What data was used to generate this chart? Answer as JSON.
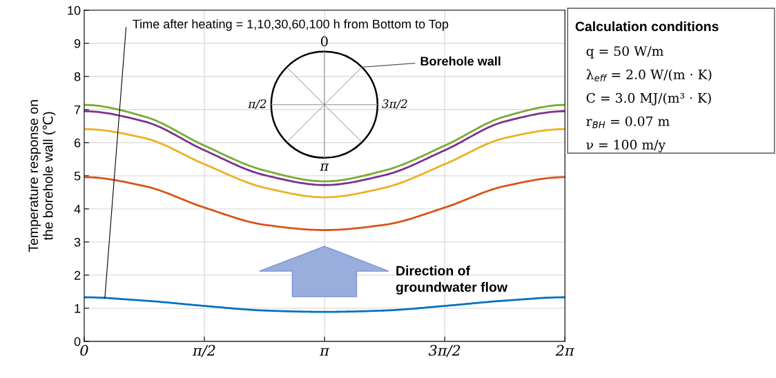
{
  "chart_data": {
    "type": "line",
    "ylabel": "Temperature response on\nthe borehole wall (℃)",
    "x": [
      0,
      0.7854,
      1.5708,
      2.3562,
      3.1416,
      3.927,
      4.7124,
      5.4978,
      6.2832
    ],
    "series": [
      {
        "color": "#0072bd",
        "values": [
          1.33,
          1.23,
          1.07,
          0.93,
          0.89,
          0.93,
          1.07,
          1.23,
          1.33
        ]
      },
      {
        "color": "#d95319",
        "values": [
          4.96,
          4.69,
          4.04,
          3.52,
          3.36,
          3.52,
          4.04,
          4.69,
          4.96
        ]
      },
      {
        "color": "#edb120",
        "values": [
          6.41,
          6.14,
          5.35,
          4.64,
          4.35,
          4.64,
          5.35,
          6.14,
          6.41
        ]
      },
      {
        "color": "#7e2f8e",
        "values": [
          6.95,
          6.64,
          5.77,
          5.02,
          4.72,
          5.02,
          5.77,
          6.64,
          6.95
        ]
      },
      {
        "color": "#77ac30",
        "values": [
          7.14,
          6.79,
          5.91,
          5.16,
          4.83,
          5.16,
          5.91,
          6.79,
          7.14
        ]
      }
    ],
    "xlim": [
      0,
      6.2832
    ],
    "xticks": [
      {
        "value": 0,
        "label": "0"
      },
      {
        "value": 1.5708,
        "label": "π/2"
      },
      {
        "value": 3.1416,
        "label": "π"
      },
      {
        "value": 4.7124,
        "label": "3π/2"
      },
      {
        "value": 6.2832,
        "label": "2π"
      }
    ],
    "ylim": [
      0,
      10
    ],
    "yticks": [
      0,
      1,
      2,
      3,
      4,
      5,
      6,
      7,
      8,
      9,
      10
    ],
    "grid": true,
    "marker": "none",
    "line_style": "solid",
    "legend": false,
    "annotations": [
      {
        "text": "Time after heating = 1,10,30,60,100 h from Bottom to Top",
        "x": 0.27,
        "y": 1.31
      },
      "0",
      "π/2",
      "3π/2",
      "π",
      "Borehole wall",
      "Direction of\ngroundwater flow",
      "Calculation conditions",
      "q = 50 W/m",
      "λ$_{eff}$ = 2.0 W/(m · K)",
      "C = 3.0 MJ/(m³ · K)",
      "r$_{BH}$ = 0.07 m",
      "ν = 100 m/y"
    ]
  }
}
